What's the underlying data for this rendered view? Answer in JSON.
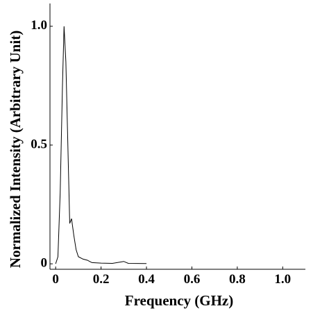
{
  "chart_data": {
    "type": "line",
    "x_label": "Frequency (GHz)",
    "y_label": "Normalized Intensity (Arbitrary Unit)",
    "x": [
      0,
      0.01,
      0.02,
      0.03,
      0.037,
      0.045,
      0.055,
      0.062,
      0.07,
      0.08,
      0.09,
      0.1,
      0.12,
      0.14,
      0.16,
      0.2,
      0.25,
      0.3,
      0.32,
      0.4
    ],
    "series": [
      {
        "color": "#000000",
        "values": [
          0,
          0.03,
          0.3,
          0.75,
          1.0,
          0.85,
          0.45,
          0.17,
          0.19,
          0.12,
          0.06,
          0.03,
          0.02,
          0.015,
          0.005,
          0.003,
          0.002,
          0.01,
          0.002,
          0.001
        ]
      }
    ],
    "xlim": [
      -0.025,
      1.1
    ],
    "ylim": [
      -0.023,
      1.096
    ],
    "xticks": [
      0,
      0.2,
      0.4,
      0.6,
      0.8,
      {
        "value": 1,
        "label": "1.0"
      }
    ],
    "yticks": [
      0,
      0.5,
      {
        "value": 1,
        "label": "1.0"
      }
    ]
  }
}
